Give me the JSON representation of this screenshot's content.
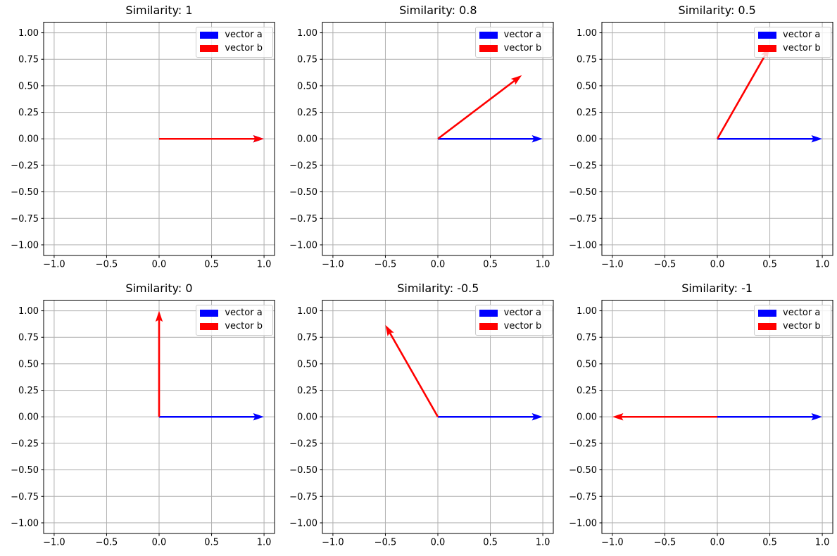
{
  "figure": {
    "background_color": "#ffffff",
    "grid_color": "#b0b0b0",
    "spine_color": "#000000",
    "tick_color": "#000000",
    "legend_face_color": "rgba(255,255,255,0.8)",
    "legend_edge_color": "#cccccc"
  },
  "chart_data": {
    "type": "quiver",
    "layout": {
      "rows": 2,
      "cols": 3
    },
    "xlim": [
      -1.1,
      1.1
    ],
    "ylim": [
      -1.1,
      1.1
    ],
    "grid": true,
    "legend_position": "upper right",
    "xticks": [
      -1.0,
      -0.5,
      0.0,
      0.5,
      1.0
    ],
    "xtick_labels": [
      "−1.0",
      "−0.5",
      "0.0",
      "0.5",
      "1.0"
    ],
    "yticks": [
      -1.0,
      -0.75,
      -0.5,
      -0.25,
      0.0,
      0.25,
      0.5,
      0.75,
      1.0
    ],
    "ytick_labels": [
      "−1.00",
      "−0.75",
      "−0.50",
      "−0.25",
      "0.00",
      "0.25",
      "0.50",
      "0.75",
      "1.00"
    ],
    "series_meta": [
      {
        "name": "vector a",
        "color": "#0000ff"
      },
      {
        "name": "vector b",
        "color": "#ff0000"
      }
    ],
    "subplots": [
      {
        "title": "Similarity: 1",
        "similarity": 1,
        "vector_a": [
          1,
          0
        ],
        "vector_b": [
          1,
          0
        ]
      },
      {
        "title": "Similarity: 0.8",
        "similarity": 0.8,
        "vector_a": [
          1,
          0
        ],
        "vector_b": [
          0.8,
          0.6
        ]
      },
      {
        "title": "Similarity: 0.5",
        "similarity": 0.5,
        "vector_a": [
          1,
          0
        ],
        "vector_b": [
          0.5,
          0.866
        ]
      },
      {
        "title": "Similarity: 0",
        "similarity": 0,
        "vector_a": [
          1,
          0
        ],
        "vector_b": [
          0,
          1
        ]
      },
      {
        "title": "Similarity: -0.5",
        "similarity": -0.5,
        "vector_a": [
          1,
          0
        ],
        "vector_b": [
          -0.5,
          0.866
        ]
      },
      {
        "title": "Similarity: -1",
        "similarity": -1,
        "vector_a": [
          1,
          0
        ],
        "vector_b": [
          -1,
          0
        ]
      }
    ]
  }
}
